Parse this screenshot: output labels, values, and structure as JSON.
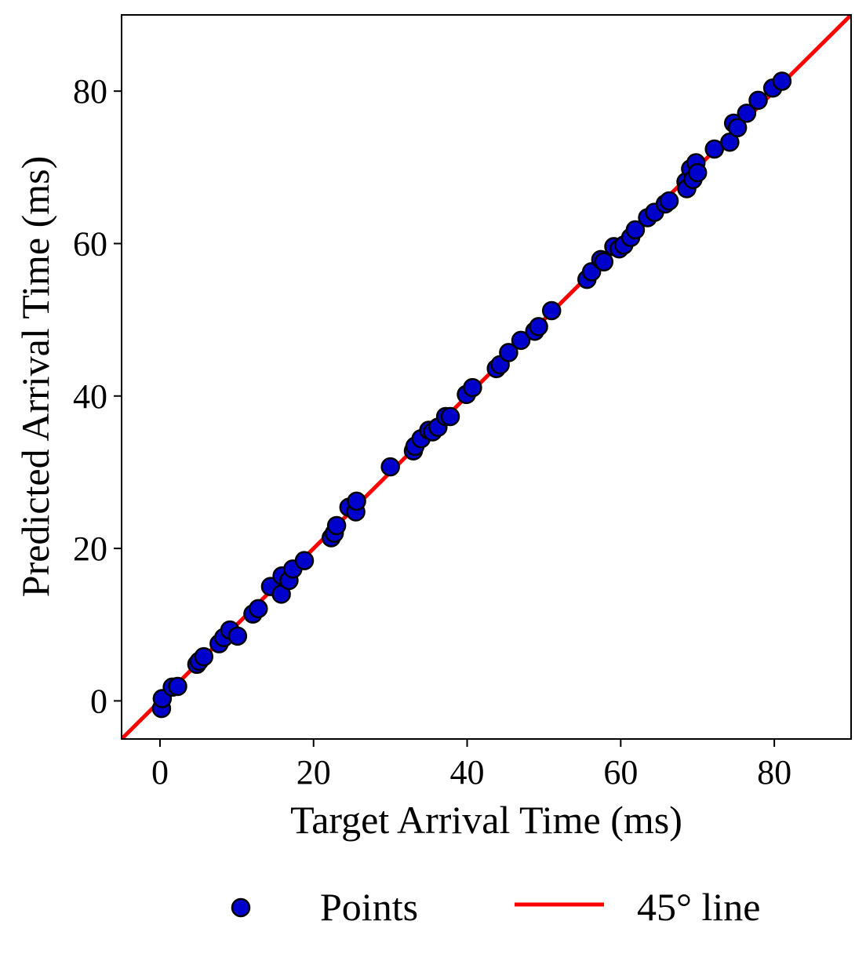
{
  "chart_data": {
    "type": "scatter",
    "xlabel": "Target Arrival Time (ms)",
    "ylabel": "Predicted Arrival Time (ms)",
    "xlim": [
      -5,
      90
    ],
    "ylim": [
      -5,
      90
    ],
    "xticks": [
      0,
      20,
      40,
      60,
      80
    ],
    "yticks": [
      0,
      20,
      40,
      60,
      80
    ],
    "grid": false,
    "legend_position": "bottom-center",
    "series": [
      {
        "name": "Points",
        "kind": "scatter",
        "color": "#0000cc",
        "edge_color": "#000000",
        "points": [
          [
            0.2,
            -1.0
          ],
          [
            0.3,
            0.3
          ],
          [
            1.6,
            1.8
          ],
          [
            2.3,
            1.9
          ],
          [
            4.8,
            4.8
          ],
          [
            5.1,
            5.2
          ],
          [
            5.7,
            5.8
          ],
          [
            7.7,
            7.5
          ],
          [
            8.3,
            8.3
          ],
          [
            9.1,
            9.3
          ],
          [
            10.1,
            8.5
          ],
          [
            12.1,
            11.4
          ],
          [
            12.8,
            12.1
          ],
          [
            14.4,
            15.0
          ],
          [
            15.8,
            14.0
          ],
          [
            15.9,
            16.4
          ],
          [
            16.8,
            15.8
          ],
          [
            17.3,
            17.3
          ],
          [
            18.8,
            18.4
          ],
          [
            22.3,
            21.4
          ],
          [
            22.7,
            22.0
          ],
          [
            23.0,
            23.0
          ],
          [
            24.6,
            25.4
          ],
          [
            25.5,
            24.8
          ],
          [
            25.6,
            26.2
          ],
          [
            30.0,
            30.7
          ],
          [
            33.0,
            32.8
          ],
          [
            33.2,
            33.4
          ],
          [
            34.0,
            34.4
          ],
          [
            35.0,
            35.5
          ],
          [
            35.5,
            35.3
          ],
          [
            36.2,
            35.9
          ],
          [
            37.2,
            37.3
          ],
          [
            37.8,
            37.3
          ],
          [
            39.9,
            40.2
          ],
          [
            40.7,
            41.1
          ],
          [
            43.8,
            43.6
          ],
          [
            44.3,
            44.1
          ],
          [
            45.4,
            45.7
          ],
          [
            47.0,
            47.3
          ],
          [
            48.8,
            48.5
          ],
          [
            49.3,
            49.1
          ],
          [
            51.0,
            51.2
          ],
          [
            55.6,
            55.3
          ],
          [
            56.2,
            56.3
          ],
          [
            57.4,
            57.9
          ],
          [
            57.8,
            57.6
          ],
          [
            59.1,
            59.6
          ],
          [
            59.8,
            59.3
          ],
          [
            60.4,
            59.8
          ],
          [
            61.3,
            60.8
          ],
          [
            61.9,
            61.8
          ],
          [
            63.5,
            63.4
          ],
          [
            64.4,
            64.1
          ],
          [
            65.8,
            65.2
          ],
          [
            66.3,
            65.6
          ],
          [
            68.5,
            68.1
          ],
          [
            68.6,
            67.2
          ],
          [
            69.1,
            69.8
          ],
          [
            69.4,
            68.4
          ],
          [
            69.8,
            70.6
          ],
          [
            70.0,
            69.3
          ],
          [
            72.2,
            72.4
          ],
          [
            74.2,
            73.3
          ],
          [
            74.7,
            75.8
          ],
          [
            75.2,
            75.2
          ],
          [
            76.4,
            77.1
          ],
          [
            77.9,
            78.8
          ],
          [
            79.8,
            80.4
          ],
          [
            81.0,
            81.3
          ]
        ]
      },
      {
        "name": "45° line",
        "kind": "line",
        "color": "#ff0000",
        "points": [
          [
            -5,
            -5
          ],
          [
            90,
            90
          ]
        ]
      }
    ]
  }
}
